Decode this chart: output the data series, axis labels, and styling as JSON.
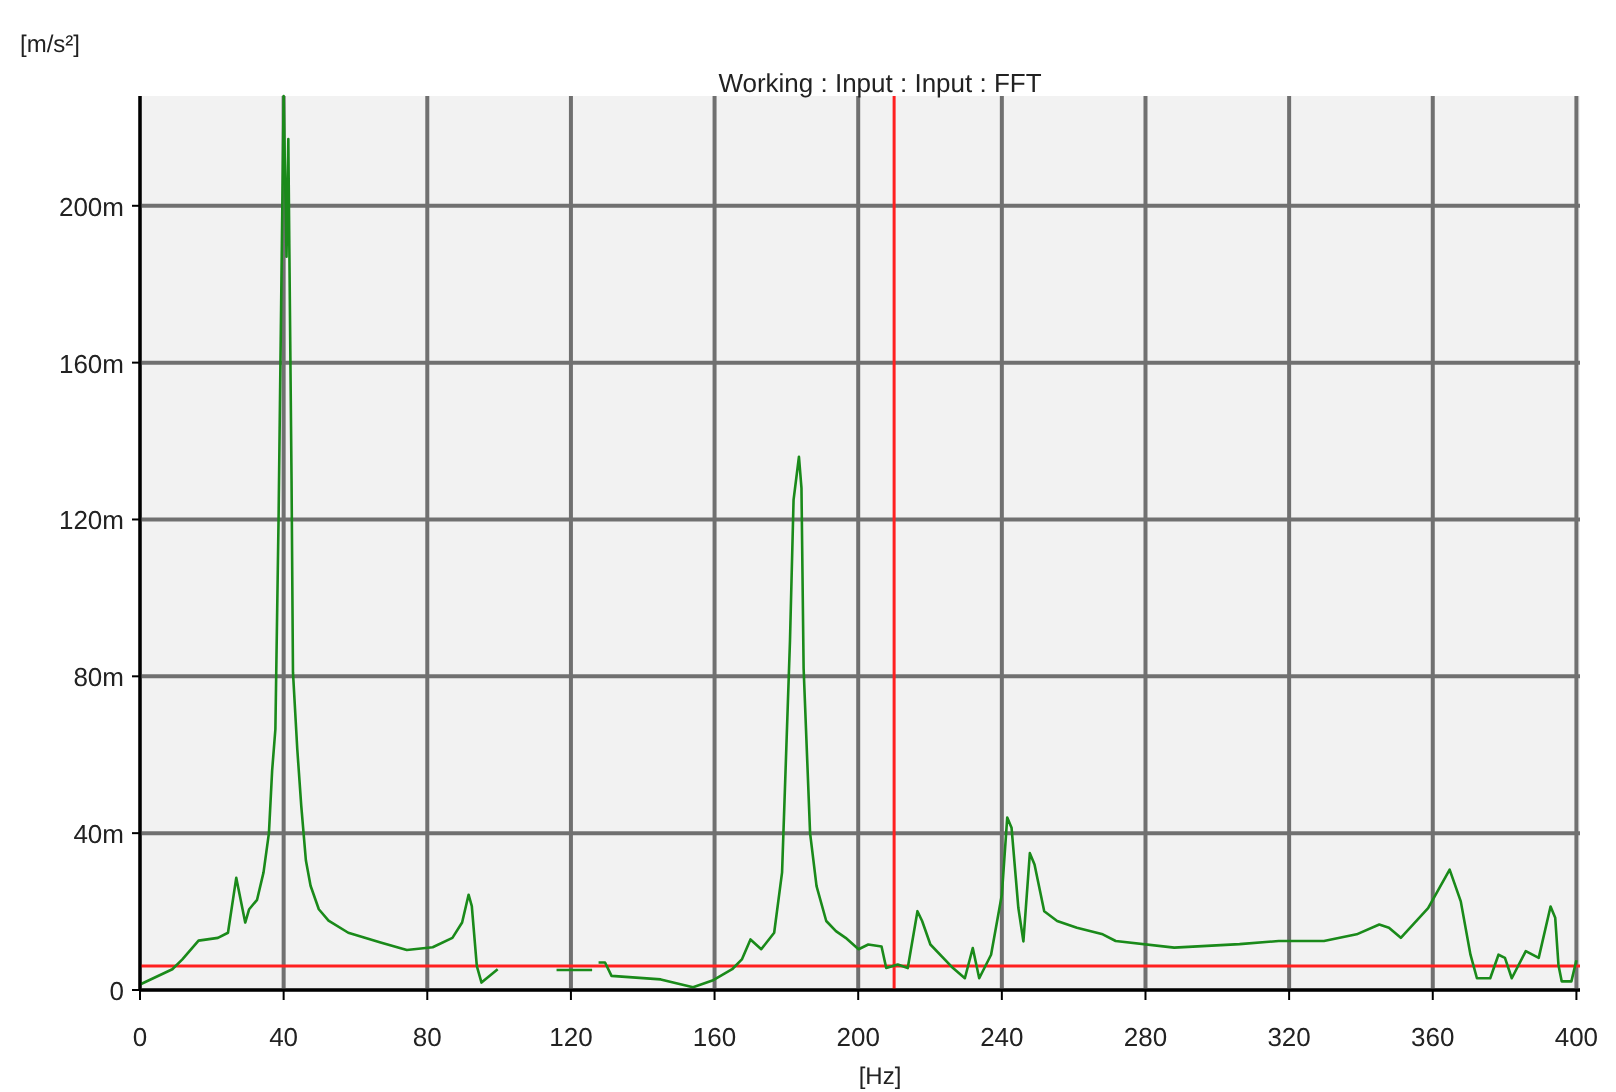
{
  "chart_data": {
    "type": "line",
    "title": "Working : Input : Input : FFT",
    "xlabel": "[Hz]",
    "ylabel": "[m/s²]",
    "xlim": [
      0,
      401
    ],
    "xticks": [
      0,
      40,
      80,
      120,
      160,
      200,
      240,
      280,
      320,
      360,
      400
    ],
    "ylim": [
      0,
      228
    ],
    "yticks": [
      0,
      {
        "value": 40,
        "label": "40m"
      },
      {
        "value": 80,
        "label": "80m"
      },
      {
        "value": 120,
        "label": "120m"
      },
      {
        "value": 160,
        "label": "160m"
      },
      {
        "value": 200,
        "label": "200m"
      }
    ],
    "grid": true,
    "marker": "none",
    "line_style": "solid",
    "series": [
      {
        "color": "#1a8a1a",
        "x": [
          0,
          9,
          11.8,
          16.3,
          21.7,
          24.5,
          26.8,
          29.3,
          30.4,
          32.6,
          34.4,
          35.9,
          36.8,
          37.7,
          38.6,
          40,
          40.8,
          41.3,
          42.2,
          42.6,
          43.8,
          44.9,
          46.2,
          47.5,
          49.8,
          52.5,
          58,
          67,
          74.3,
          81.5,
          87,
          89.7,
          91.5,
          92.4,
          93.8,
          95.1,
          99.6
        ],
        "values": [
          1.4,
          5.3,
          7.8,
          12.6,
          13.3,
          14.6,
          28.6,
          17.2,
          20.6,
          23,
          30,
          40,
          56,
          66.5,
          121,
          228,
          187,
          217,
          130,
          81,
          61.4,
          47,
          33,
          26.6,
          20.6,
          17.7,
          14.6,
          12.1,
          10.2,
          10.9,
          13.3,
          17.2,
          24.3,
          21.4,
          6.1,
          1.9,
          5.3
        ]
      },
      {
        "color": "#1a8a1a",
        "x": [
          116,
          125.9
        ],
        "values": [
          5.1,
          5.1
        ]
      },
      {
        "color": "#1a8a1a",
        "x": [
          127.7,
          129.5,
          131.3,
          145,
          154,
          159.4,
          164.9,
          167.6,
          170,
          173,
          176.6,
          178.8,
          181,
          182,
          183.5,
          184.2,
          184.8,
          186.6,
          188.4,
          191.1,
          193.8,
          196.5,
          200.1,
          202.8,
          206.5,
          207.8,
          211,
          213.8,
          216.5,
          217.8,
          220.1,
          226.4,
          229.7,
          231.9,
          233.7,
          237,
          240,
          241.5,
          242.7,
          244.6,
          246,
          247.8,
          249.1,
          251.8,
          255.4,
          260.9,
          268.1,
          271.7,
          288,
          306.2,
          317.1,
          329.7,
          338.8,
          345.1,
          347.8,
          351.1,
          358.7,
          364.7,
          367.8,
          370.5,
          372.3,
          376,
          378.3,
          380.1,
          382,
          385.9,
          389.5,
          392.8,
          394.1,
          395,
          395.9,
          398.6,
          400
        ],
        "values": [
          7,
          7,
          3.6,
          2.7,
          0.7,
          2.4,
          5.3,
          7.8,
          12.9,
          10.4,
          14.6,
          30,
          89,
          125,
          136,
          128,
          82,
          40,
          26.5,
          17.6,
          15,
          13.3,
          10.4,
          11.6,
          11.1,
          5.6,
          6.5,
          5.6,
          20.1,
          17.6,
          11.6,
          5.6,
          3,
          10.7,
          3,
          9,
          24.3,
          44,
          41.4,
          20.9,
          12.4,
          34.9,
          32,
          20.1,
          17.6,
          15.9,
          14.2,
          12.5,
          10.8,
          11.7,
          12.5,
          12.5,
          14.2,
          16.7,
          15.9,
          13.3,
          20.9,
          30.7,
          22.6,
          9,
          3,
          3,
          9,
          8.2,
          3,
          9.9,
          8.2,
          21.3,
          18.4,
          6.4,
          2.2,
          2.2,
          7.6
        ]
      }
    ],
    "ref_lines": [
      {
        "axis": "y",
        "value": 6.1,
        "color": "#ff2020"
      },
      {
        "axis": "x",
        "value": 210,
        "color": "#ff2020"
      }
    ]
  }
}
